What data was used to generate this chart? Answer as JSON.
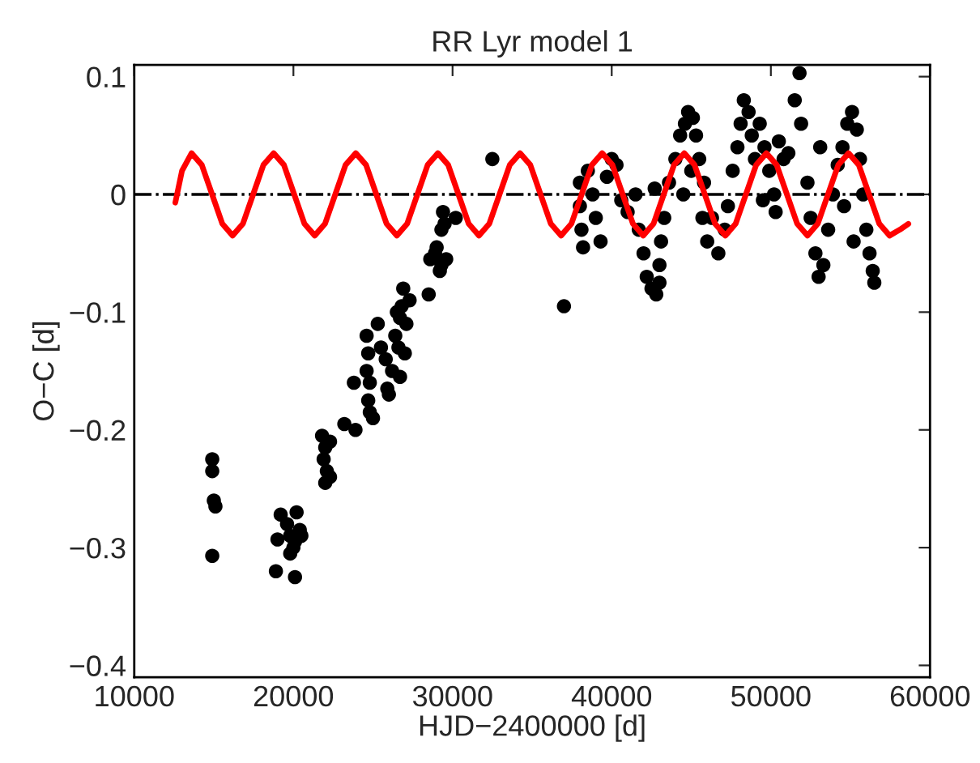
{
  "chart_data": {
    "type": "scatter",
    "title": "RR Lyr model 1",
    "xlabel": "HJD−2400000 [d]",
    "ylabel": "O−C [d]",
    "xlim": [
      10000,
      60000
    ],
    "xticks": [
      10000,
      20000,
      30000,
      40000,
      50000,
      60000
    ],
    "ylim": [
      -0.41,
      0.11
    ],
    "yticks": [
      {
        "value": -0.4,
        "label": "−0.4"
      },
      {
        "value": -0.3,
        "label": "−0.3"
      },
      {
        "value": -0.2,
        "label": "−0.2"
      },
      {
        "value": -0.1,
        "label": "−0.1"
      },
      0,
      0.1
    ],
    "grid": false,
    "legend": false,
    "ref_lines": [
      {
        "axis": "y",
        "value": 0,
        "color": "#000000",
        "line_style": "dashdot"
      }
    ],
    "series": [
      {
        "color": "#000000",
        "marker": "circle",
        "x": [
          14900,
          14900,
          15000,
          15100,
          14900,
          19000,
          19200,
          19600,
          19800,
          20000,
          20200,
          20400,
          20100,
          19800,
          18900,
          20100,
          20500,
          21800,
          22000,
          21900,
          22100,
          22000,
          22300,
          22300,
          23200,
          23900,
          23800,
          24600,
          24700,
          24600,
          24800,
          24700,
          24800,
          25000,
          25300,
          25500,
          25800,
          25900,
          26000,
          26200,
          26400,
          26600,
          26700,
          26800,
          26500,
          26900,
          27100,
          27300,
          27000,
          26700,
          28500,
          28600,
          28900,
          29000,
          29300,
          29600,
          29300,
          29400,
          29500,
          30200,
          29200,
          32500,
          37000,
          38000,
          38000,
          38100,
          38200,
          38500,
          38800,
          39000,
          39300,
          39700,
          40000,
          40300,
          40600,
          41000,
          41500,
          41700,
          42000,
          42200,
          42500,
          42800,
          43000,
          43100,
          43300,
          43600,
          43000,
          42700,
          44000,
          44300,
          44600,
          44800,
          45100,
          45300,
          45000,
          44500,
          45500,
          45800,
          45700,
          46000,
          46300,
          46700,
          47100,
          47300,
          47600,
          47900,
          48100,
          48300,
          48600,
          48800,
          49000,
          49300,
          49600,
          49900,
          50200,
          50500,
          50800,
          51100,
          51500,
          51800,
          51900,
          52300,
          52500,
          52800,
          53000,
          53300,
          53600,
          53900,
          54200,
          54500,
          54800,
          55100,
          55400,
          55600,
          55800,
          56000,
          56200,
          56400,
          56500,
          55200,
          54600,
          49500,
          50300,
          53100
        ],
        "values": [
          -0.225,
          -0.235,
          -0.26,
          -0.265,
          -0.307,
          -0.293,
          -0.272,
          -0.28,
          -0.29,
          -0.3,
          -0.27,
          -0.285,
          -0.295,
          -0.305,
          -0.32,
          -0.325,
          -0.29,
          -0.205,
          -0.215,
          -0.225,
          -0.235,
          -0.245,
          -0.24,
          -0.21,
          -0.195,
          -0.2,
          -0.16,
          -0.12,
          -0.135,
          -0.15,
          -0.16,
          -0.175,
          -0.185,
          -0.19,
          -0.11,
          -0.13,
          -0.14,
          -0.165,
          -0.17,
          -0.15,
          -0.12,
          -0.13,
          -0.105,
          -0.095,
          -0.1,
          -0.08,
          -0.11,
          -0.09,
          -0.135,
          -0.155,
          -0.085,
          -0.055,
          -0.05,
          -0.045,
          -0.06,
          -0.055,
          -0.03,
          -0.015,
          -0.025,
          -0.02,
          -0.065,
          0.03,
          -0.095,
          0.01,
          -0.01,
          -0.03,
          -0.045,
          0.02,
          0.0,
          -0.02,
          -0.04,
          0.015,
          0.03,
          0.025,
          -0.005,
          -0.015,
          0.0,
          -0.03,
          -0.05,
          -0.07,
          -0.08,
          -0.085,
          -0.06,
          -0.04,
          -0.02,
          0.01,
          -0.075,
          0.005,
          0.03,
          0.05,
          0.06,
          0.07,
          0.065,
          0.05,
          0.02,
          0.0,
          0.03,
          0.01,
          -0.02,
          -0.04,
          -0.02,
          -0.05,
          -0.03,
          -0.01,
          0.02,
          0.04,
          0.06,
          0.08,
          0.07,
          0.05,
          0.03,
          0.06,
          0.04,
          0.02,
          0.0,
          0.045,
          0.03,
          0.035,
          0.08,
          0.103,
          0.06,
          0.01,
          -0.02,
          -0.05,
          -0.07,
          -0.06,
          -0.03,
          0.0,
          0.025,
          0.04,
          0.06,
          0.07,
          0.055,
          0.03,
          0.0,
          -0.03,
          -0.05,
          -0.065,
          -0.075,
          -0.04,
          -0.01,
          -0.005,
          -0.015,
          0.04
        ]
      },
      {
        "type": "line",
        "color": "#ff0000",
        "marker": "none",
        "line_style": "solid",
        "x": [
          12580,
          13000,
          13600,
          14245,
          14890,
          15535,
          16180,
          16825,
          17470,
          18115,
          18760,
          19405,
          20050,
          20695,
          21340,
          21985,
          22630,
          23275,
          23920,
          24565,
          25210,
          25855,
          26500,
          27145,
          27790,
          28435,
          29080,
          29725,
          30370,
          31015,
          31660,
          32305,
          32950,
          33595,
          34240,
          34885,
          35530,
          36175,
          36820,
          37465,
          38110,
          38755,
          39400,
          40045,
          40690,
          41335,
          41980,
          42625,
          43270,
          43915,
          44560,
          45205,
          45850,
          46495,
          47140,
          47785,
          48430,
          49075,
          49720,
          50365,
          51010,
          51655,
          52300,
          52945,
          53590,
          54235,
          54880,
          55525,
          56170,
          56815,
          57460,
          58105,
          58640
        ],
        "values": [
          -0.007,
          0.02,
          0.035,
          0.025,
          0,
          -0.025,
          -0.035,
          -0.025,
          0,
          0.025,
          0.035,
          0.025,
          0,
          -0.025,
          -0.035,
          -0.025,
          0,
          0.025,
          0.035,
          0.025,
          0,
          -0.025,
          -0.035,
          -0.025,
          0,
          0.025,
          0.035,
          0.025,
          0,
          -0.025,
          -0.035,
          -0.025,
          0,
          0.025,
          0.035,
          0.025,
          0,
          -0.025,
          -0.035,
          -0.025,
          0,
          0.025,
          0.035,
          0.025,
          0,
          -0.025,
          -0.035,
          -0.025,
          0,
          0.025,
          0.035,
          0.025,
          0,
          -0.025,
          -0.035,
          -0.025,
          0,
          0.025,
          0.035,
          0.025,
          0,
          -0.025,
          -0.035,
          -0.025,
          0,
          0.025,
          0.035,
          0.025,
          0,
          -0.025,
          -0.035,
          -0.03,
          -0.025
        ]
      }
    ]
  }
}
